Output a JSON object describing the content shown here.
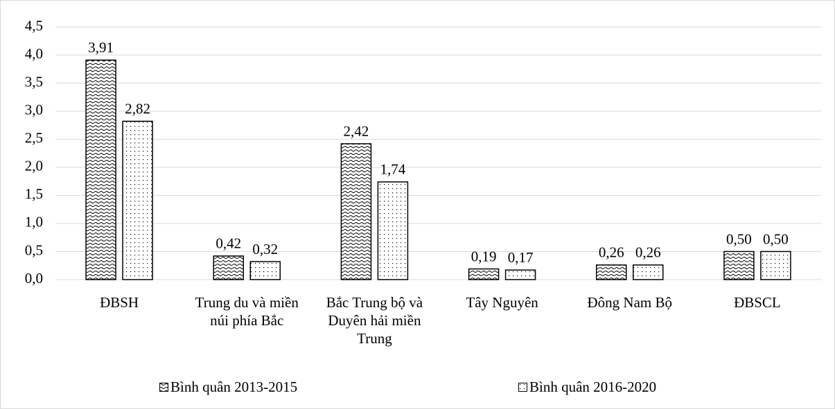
{
  "chart_data": {
    "type": "bar",
    "categories": [
      "ĐBSH",
      "Trung du và miền núi phía Bắc",
      "Bắc Trung bộ và Duyên hải miền Trung",
      "Tây Nguyên",
      "Đông Nam Bộ",
      "ĐBSCL"
    ],
    "series": [
      {
        "name": "Bình quân 2013-2015",
        "color": "#000000",
        "values": [
          3.91,
          0.42,
          2.42,
          0.19,
          0.26,
          0.5
        ],
        "value_labels": [
          "3,91",
          "0,42",
          "2,42",
          "0,19",
          "0,26",
          "0,50"
        ]
      },
      {
        "name": "Bình quân 2016-2020",
        "color": "#000000",
        "values": [
          2.82,
          0.32,
          1.74,
          0.17,
          0.26,
          0.5
        ],
        "value_labels": [
          "2,82",
          "0,32",
          "1,74",
          "0,17",
          "0,26",
          "0,50"
        ]
      }
    ],
    "ylim": [
      0,
      4.5
    ],
    "yticks": [
      {
        "value": 0,
        "label": "0,0"
      },
      {
        "value": 0.5,
        "label": "0,5"
      },
      {
        "value": 1,
        "label": "1,0"
      },
      {
        "value": 1.5,
        "label": "1,5"
      },
      {
        "value": 2,
        "label": "2,0"
      },
      {
        "value": 2.5,
        "label": "2,5"
      },
      {
        "value": 3,
        "label": "3,0"
      },
      {
        "value": 3.5,
        "label": "3,5"
      },
      {
        "value": 4,
        "label": "4,0"
      },
      {
        "value": 4.5,
        "label": "4,5"
      }
    ],
    "grid": true,
    "legend": "bottom"
  }
}
